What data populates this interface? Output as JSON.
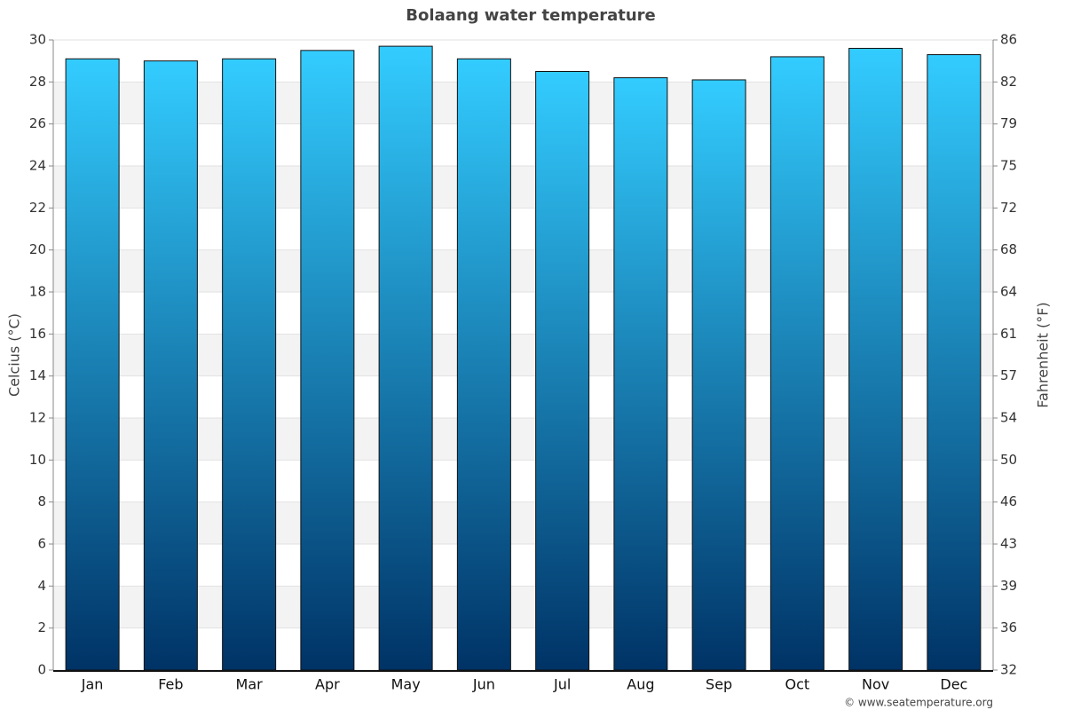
{
  "chart_data": {
    "type": "bar",
    "title": "Bolaang water temperature",
    "source": "© www.seatemperature.org",
    "y_label": "Celcius (°C)",
    "y2_label": "Fahrenheit (°F)",
    "categories": [
      "Jan",
      "Feb",
      "Mar",
      "Apr",
      "May",
      "Jun",
      "Jul",
      "Aug",
      "Sep",
      "Oct",
      "Nov",
      "Dec"
    ],
    "values": [
      29.1,
      29.0,
      29.1,
      29.5,
      29.7,
      29.1,
      28.5,
      28.2,
      28.1,
      29.2,
      29.6,
      29.3
    ],
    "color": [
      "#33ccff",
      "#003366"
    ],
    "ylim": [
      0,
      30
    ],
    "yticks": [
      0,
      2,
      4,
      6,
      8,
      10,
      12,
      14,
      16,
      18,
      20,
      22,
      24,
      26,
      28,
      30
    ],
    "y2lim": [
      32,
      86
    ],
    "y2ticks": [
      32,
      {
        "value": 35.6,
        "label": "36"
      },
      {
        "value": 39.2,
        "label": "39"
      },
      {
        "value": 42.8,
        "label": "43"
      },
      {
        "value": 46.4,
        "label": "46"
      },
      50,
      {
        "value": 53.6,
        "label": "54"
      },
      {
        "value": 57.2,
        "label": "57"
      },
      {
        "value": 60.8,
        "label": "61"
      },
      {
        "value": 64.4,
        "label": "64"
      },
      68,
      {
        "value": 71.6,
        "label": "72"
      },
      {
        "value": 75.2,
        "label": "75"
      },
      {
        "value": 78.8,
        "label": "79"
      },
      {
        "value": 82.4,
        "label": "82"
      },
      86
    ],
    "grid": true
  }
}
